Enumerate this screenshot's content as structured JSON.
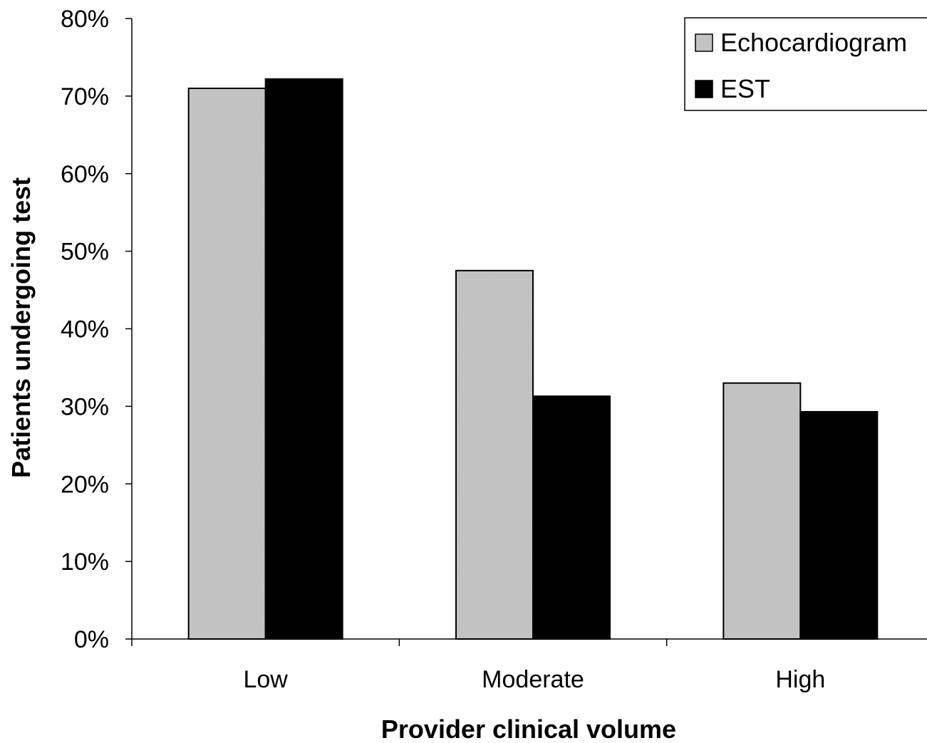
{
  "chart_data": {
    "type": "bar",
    "title": "",
    "xlabel": "Provider clinical volume",
    "ylabel": "Patients undergoing test",
    "categories": [
      "Low",
      "Moderate",
      "High"
    ],
    "series": [
      {
        "name": "Echocardiogram",
        "values": [
          71,
          47.5,
          33
        ],
        "color": "#c4c4c4"
      },
      {
        "name": "EST",
        "values": [
          72.2,
          31.3,
          29.3
        ],
        "color": "#000000"
      }
    ],
    "ylim": [
      0,
      80
    ],
    "yticks": [
      {
        "value": 0,
        "label": "0%"
      },
      {
        "value": 10,
        "label": "10%"
      },
      {
        "value": 20,
        "label": "20%"
      },
      {
        "value": 30,
        "label": "30%"
      },
      {
        "value": 40,
        "label": "40%"
      },
      {
        "value": 50,
        "label": "50%"
      },
      {
        "value": 60,
        "label": "60%"
      },
      {
        "value": 70,
        "label": "70%"
      },
      {
        "value": 80,
        "label": "80%"
      }
    ],
    "grid": false,
    "legend_position": "top-right"
  }
}
